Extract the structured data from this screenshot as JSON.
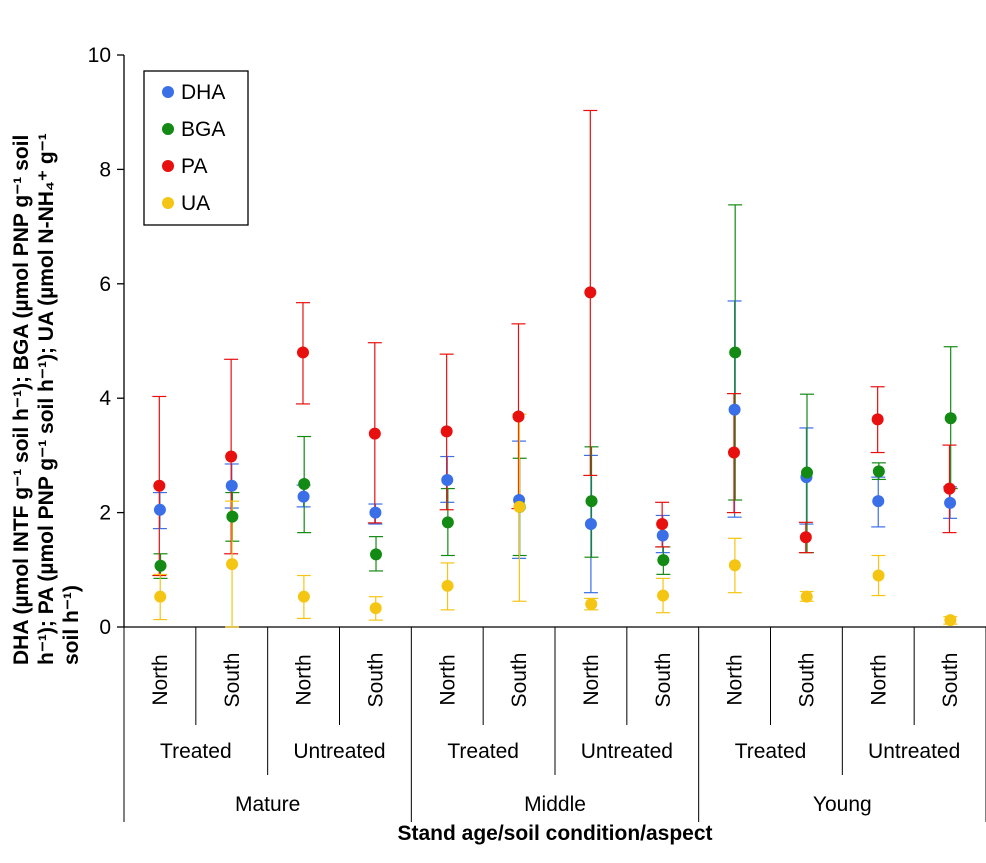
{
  "chart_data": {
    "type": "scatter",
    "xlabel": "Stand age/soil condition/aspect",
    "ylabel_lines": [
      "DHA (µmol INTF g⁻¹ soil h⁻¹); BGA (µmol PNP g⁻¹ soil",
      "h⁻¹); PA (µmol PNP g⁻¹ soil h⁻¹); UA (µmol N-NH₄⁺ g⁻¹",
      "soil h⁻¹)"
    ],
    "ylim": [
      0,
      10
    ],
    "yticks": [
      "0",
      "2",
      "4",
      "6",
      "8",
      "10"
    ],
    "grid": false,
    "legend_position": "top-left",
    "categories": [
      "North",
      "South",
      "North",
      "South",
      "North",
      "South",
      "North",
      "South",
      "North",
      "South",
      "North",
      "South"
    ],
    "condition_groups": [
      "Treated",
      "Untreated",
      "Treated",
      "Untreated",
      "Treated",
      "Untreated"
    ],
    "age_groups": [
      "Mature",
      "Middle",
      "Young"
    ],
    "series": [
      {
        "name": "DHA",
        "color": "#3a6fe8",
        "values": [
          2.05,
          2.47,
          2.28,
          2.0,
          2.57,
          2.22,
          1.8,
          1.6,
          3.8,
          2.62,
          2.2,
          2.17
        ],
        "err_low": [
          1.72,
          2.08,
          2.1,
          1.8,
          2.18,
          1.2,
          0.6,
          1.3,
          1.92,
          1.8,
          1.75,
          1.9
        ],
        "err_high": [
          2.35,
          2.85,
          2.48,
          2.15,
          2.98,
          3.25,
          3.0,
          1.95,
          5.7,
          3.48,
          2.62,
          2.45
        ]
      },
      {
        "name": "BGA",
        "color": "#138a13",
        "values": [
          1.07,
          1.93,
          2.5,
          1.27,
          1.83,
          2.1,
          2.2,
          1.17,
          4.8,
          2.7,
          2.72,
          3.65
        ],
        "err_low": [
          0.85,
          1.5,
          1.65,
          0.98,
          1.25,
          1.25,
          1.22,
          0.92,
          2.22,
          1.3,
          2.58,
          2.42
        ],
        "err_high": [
          1.28,
          2.35,
          3.33,
          1.58,
          2.42,
          2.95,
          3.15,
          1.4,
          7.38,
          4.07,
          2.87,
          4.9
        ]
      },
      {
        "name": "PA",
        "color": "#e8100f",
        "values": [
          2.47,
          2.98,
          4.8,
          3.38,
          3.42,
          3.68,
          5.85,
          1.8,
          3.05,
          1.57,
          3.63,
          2.42
        ],
        "err_low": [
          0.9,
          1.28,
          3.9,
          1.82,
          2.05,
          2.07,
          2.65,
          1.4,
          2.0,
          1.3,
          3.05,
          1.65
        ],
        "err_high": [
          4.03,
          4.68,
          5.67,
          4.97,
          4.77,
          5.3,
          9.03,
          2.18,
          4.08,
          1.83,
          4.2,
          3.18
        ]
      },
      {
        "name": "UA",
        "color": "#f5c514",
        "values": [
          0.53,
          1.1,
          0.53,
          0.33,
          0.72,
          2.1,
          0.4,
          0.55,
          1.08,
          0.53,
          0.9,
          0.12
        ],
        "err_low": [
          0.13,
          0.0,
          0.15,
          0.12,
          0.3,
          0.45,
          0.3,
          0.25,
          0.6,
          0.45,
          0.55,
          0.05
        ],
        "err_high": [
          0.92,
          2.2,
          0.9,
          0.53,
          1.12,
          3.72,
          0.5,
          0.85,
          1.55,
          0.62,
          1.25,
          0.18
        ]
      }
    ]
  }
}
